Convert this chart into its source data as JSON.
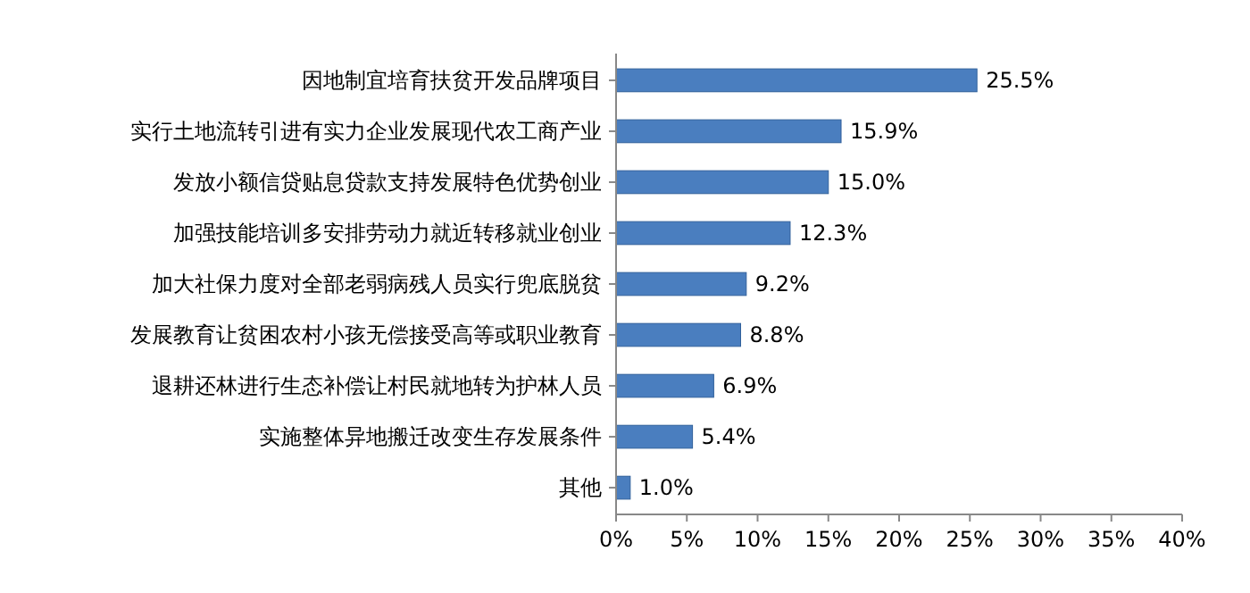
{
  "chart_data": {
    "type": "bar",
    "orientation": "horizontal",
    "categories": [
      "因地制宜培育扶贫开发品牌项目",
      "实行土地流转引进有实力企业发展现代农工商产业",
      "发放小额信贷贴息贷款支持发展特色优势创业",
      "加强技能培训多安排劳动力就近转移就业创业",
      "加大社保力度对全部老弱病残人员实行兜底脱贫",
      "发展教育让贫困农村小孩无偿接受高等或职业教育",
      "退耕还林进行生态补偿让村民就地转为护林人员",
      "实施整体异地搬迁改变生存发展条件",
      "其他"
    ],
    "values": [
      25.5,
      15.9,
      15.0,
      12.3,
      9.2,
      8.8,
      6.9,
      5.4,
      1.0
    ],
    "value_labels": [
      "25.5%",
      "15.9%",
      "15.0%",
      "12.3%",
      "9.2%",
      "8.8%",
      "6.9%",
      "5.4%",
      "1.0%"
    ],
    "color": "#4a7ebf",
    "xlim": [
      0,
      40
    ],
    "xticks": [
      {
        "value": 0,
        "label": "0%"
      },
      {
        "value": 5,
        "label": "5%"
      },
      {
        "value": 10,
        "label": "10%"
      },
      {
        "value": 15,
        "label": "15%"
      },
      {
        "value": 20,
        "label": "20%"
      },
      {
        "value": 25,
        "label": "25%"
      },
      {
        "value": 30,
        "label": "30%"
      },
      {
        "value": 35,
        "label": "35%"
      },
      {
        "value": 40,
        "label": "40%"
      }
    ],
    "grid": false
  }
}
